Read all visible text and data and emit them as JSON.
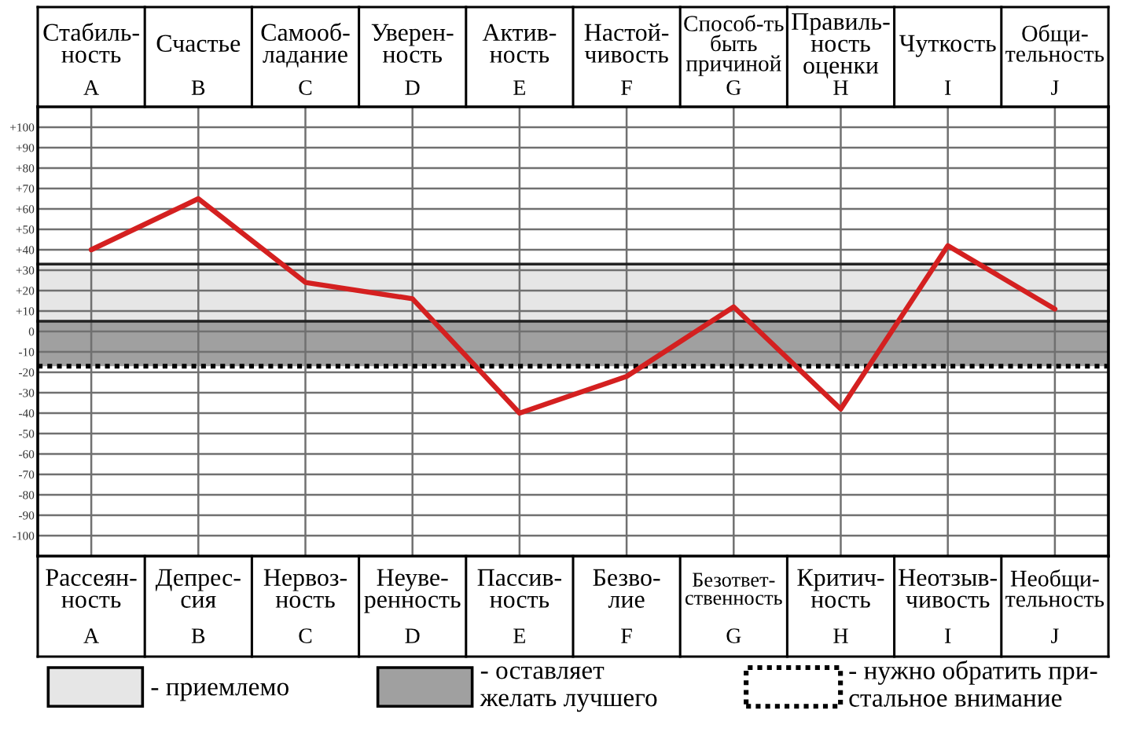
{
  "chart_data": {
    "type": "line",
    "categories": [
      "A",
      "B",
      "C",
      "D",
      "E",
      "F",
      "G",
      "H",
      "I",
      "J"
    ],
    "values": [
      40,
      65,
      24,
      16,
      -40,
      -22,
      12,
      -38,
      42,
      11
    ],
    "color": "#d42020",
    "ylim": [
      -110,
      110
    ],
    "yticks": [
      {
        "value": 100,
        "label": "+100"
      },
      {
        "value": 90,
        "label": "+90"
      },
      {
        "value": 80,
        "label": "+80"
      },
      {
        "value": 70,
        "label": "+70"
      },
      {
        "value": 60,
        "label": "+60"
      },
      {
        "value": 50,
        "label": "+50"
      },
      {
        "value": 40,
        "label": "+40"
      },
      {
        "value": 30,
        "label": "+30"
      },
      {
        "value": 20,
        "label": "+20"
      },
      {
        "value": 10,
        "label": "+10"
      },
      0,
      -10,
      -20,
      -30,
      -40,
      -50,
      -60,
      -70,
      -80,
      -90,
      -100
    ],
    "grid": true,
    "bands": [
      {
        "axis": "y",
        "from": 5,
        "to": 33,
        "label": "- приемлемо",
        "color": "#e6e6e6"
      },
      {
        "axis": "y",
        "from": -17,
        "to": 5,
        "label": "- оставляет\nжелать лучшего",
        "color": "#a0a0a0"
      }
    ],
    "ref_lines": [
      {
        "axis": "y",
        "value": 33,
        "color": "#222222",
        "line_style": "solid"
      },
      {
        "axis": "y",
        "value": 5,
        "color": "#222222",
        "line_style": "solid"
      },
      {
        "axis": "y",
        "value": -17,
        "label": "- нужно обратить при-\nстальное внимание",
        "color": "#000000",
        "line_style": "dotted"
      }
    ],
    "legend": "bottom",
    "annotations": [
      "Стабиль-\nность",
      "Счастье",
      "Самооб-\nладание",
      "Уверен-\nность",
      "Актив-\nность",
      "Настой-\nчивость",
      "Способ-ть\nбыть\nпричиной",
      "Правиль-\nность\nоценки",
      "Чуткость",
      "Общи-\nтельность",
      "Рассеян-\nность",
      "Депрес-\nсия",
      "Нервоз-\nность",
      "Неуве-\nренность",
      "Пассив-\nность",
      "Безво-\nлие",
      "Безответ-\nственность",
      "Критич-\nность",
      "Неотзыв-\nчивость",
      "Необщи-\nтельность"
    ]
  }
}
